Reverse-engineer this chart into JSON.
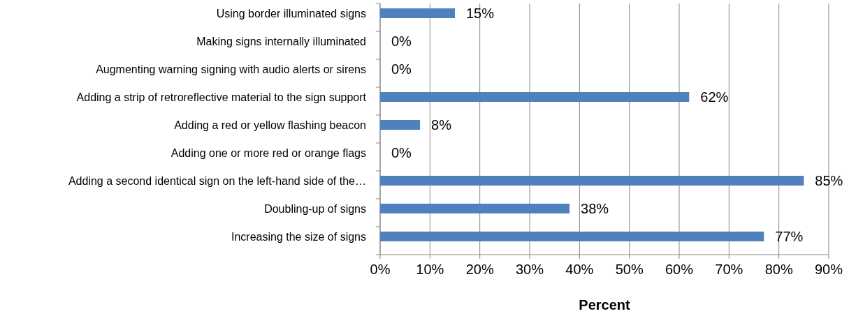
{
  "chart_data": {
    "type": "bar",
    "orientation": "horizontal",
    "xlabel": "Percent",
    "categories": [
      "Using border illuminated signs",
      "Making signs internally illuminated",
      "Augmenting warning signing with audio alerts or sirens",
      "Adding a strip of retroreflective material to the sign support",
      "Adding a red or yellow flashing beacon",
      "Adding one or more red or orange flags",
      "Adding a second identical sign on the left-hand side of the…",
      "Doubling-up of signs",
      "Increasing the size of signs"
    ],
    "values": [
      15,
      0,
      0,
      62,
      8,
      0,
      85,
      38,
      77
    ],
    "color": "#4f81bd",
    "xlim": [
      0,
      90
    ],
    "xticks": [
      {
        "value": 0,
        "label": "0%"
      },
      {
        "value": 10,
        "label": "10%"
      },
      {
        "value": 20,
        "label": "20%"
      },
      {
        "value": 30,
        "label": "30%"
      },
      {
        "value": 40,
        "label": "40%"
      },
      {
        "value": 50,
        "label": "50%"
      },
      {
        "value": 60,
        "label": "60%"
      },
      {
        "value": 70,
        "label": "70%"
      },
      {
        "value": 80,
        "label": "80%"
      },
      {
        "value": 90,
        "label": "90%"
      }
    ],
    "value_labels": [
      "15%",
      "0%",
      "0%",
      "62%",
      "8%",
      "0%",
      "85%",
      "38%",
      "77%"
    ],
    "grid": "x"
  }
}
